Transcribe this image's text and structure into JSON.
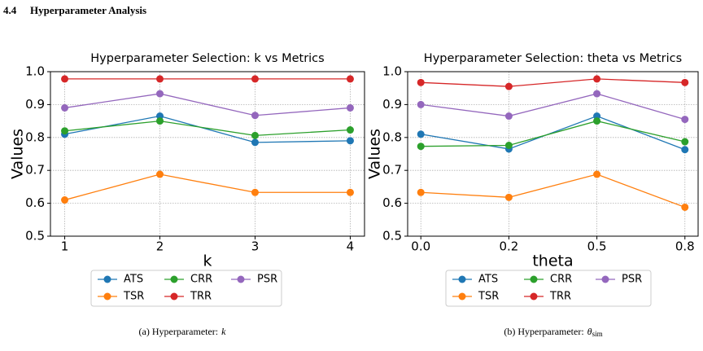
{
  "section": {
    "number": "4.4",
    "title": "Hyperparameter Analysis"
  },
  "chart_data": [
    {
      "type": "line",
      "title": "Hyperparameter Selection: k vs Metrics",
      "x_label": "k",
      "y_label": "Values",
      "x": [
        1,
        2,
        3,
        4
      ],
      "xlim": [
        0.85,
        4.15
      ],
      "xticks": [
        1,
        2,
        3,
        4
      ],
      "ylim": [
        0.5,
        1.0
      ],
      "yticks": [
        0.5,
        0.6,
        0.7,
        0.8,
        0.9,
        {
          "value": 1.0,
          "label": "1.0"
        }
      ],
      "grid": true,
      "series": [
        {
          "name": "ATS",
          "color": "#1f77b4",
          "values": [
            0.81,
            0.865,
            0.785,
            0.79
          ]
        },
        {
          "name": "TSR",
          "color": "#ff7f0e",
          "values": [
            0.61,
            0.688,
            0.633,
            0.633
          ]
        },
        {
          "name": "CRR",
          "color": "#2ca02c",
          "values": [
            0.82,
            0.85,
            0.806,
            0.823
          ]
        },
        {
          "name": "TRR",
          "color": "#d62728",
          "values": [
            0.978,
            0.978,
            0.978,
            0.978
          ]
        },
        {
          "name": "PSR",
          "color": "#9467bd",
          "values": [
            0.89,
            0.933,
            0.867,
            0.89
          ]
        }
      ]
    },
    {
      "type": "line",
      "title": "Hyperparameter Selection: theta vs Metrics",
      "x_label": "theta",
      "y_label": "Values",
      "categories": [
        "0.0",
        "0.2",
        "0.5",
        "0.8"
      ],
      "ylim": [
        0.5,
        1.0
      ],
      "yticks": [
        0.5,
        0.6,
        0.7,
        0.8,
        0.9,
        {
          "value": 1.0,
          "label": "1.0"
        }
      ],
      "grid": true,
      "series": [
        {
          "name": "ATS",
          "color": "#1f77b4",
          "values": [
            0.81,
            0.765,
            0.865,
            0.763
          ]
        },
        {
          "name": "TSR",
          "color": "#ff7f0e",
          "values": [
            0.633,
            0.618,
            0.688,
            0.588
          ]
        },
        {
          "name": "CRR",
          "color": "#2ca02c",
          "values": [
            0.773,
            0.776,
            0.85,
            0.787
          ]
        },
        {
          "name": "TRR",
          "color": "#d62728",
          "values": [
            0.967,
            0.955,
            0.978,
            0.967
          ]
        },
        {
          "name": "PSR",
          "color": "#9467bd",
          "values": [
            0.9,
            0.865,
            0.933,
            0.855
          ]
        }
      ]
    }
  ],
  "captions": [
    {
      "prefix": "(a) Hyperparameter:",
      "symbol": "k"
    },
    {
      "prefix": "(b) Hyperparameter:",
      "symbol": "θ",
      "subscript": "sim"
    }
  ]
}
